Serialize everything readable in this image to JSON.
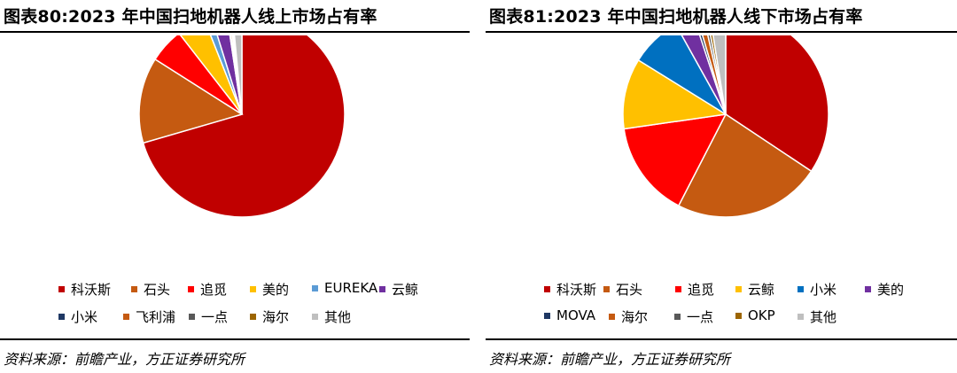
{
  "charts": [
    {
      "title": "图表80:2023 年中国扫地机器人线上市场占有率",
      "source": "资料来源：前瞻产业，方正证券研究所",
      "chart_data": {
        "type": "pie",
        "title": "图表80:2023 年中国扫地机器人线上市场占有率",
        "start_angle_deg": 0,
        "direction": "clockwise",
        "labels": [
          "科沃斯",
          "石头",
          "追觅",
          "美的",
          "EUREKA",
          "云鲸",
          "小米",
          "飞利浦",
          "一点",
          "海尔",
          "其他"
        ],
        "values": [
          70.5,
          13.5,
          5.5,
          4.5,
          1.2,
          2.4,
          0.2,
          0.3,
          0.2,
          0.2,
          1.5
        ],
        "colors": [
          "#C00000",
          "#C55A11",
          "#FF0000",
          "#FFC000",
          "#5B9BD5",
          "#7030A0",
          "#1F3864",
          "#C55A11",
          "#595959",
          "#9C6500",
          "#BFBFBF"
        ],
        "legend_position": "bottom"
      },
      "legend_rows": [
        [
          0,
          1,
          2,
          3,
          4,
          5
        ],
        [
          6,
          7,
          8,
          9,
          10
        ]
      ]
    },
    {
      "title": "图表81:2023 年中国扫地机器人线下市场占有率",
      "source": "资料来源：前瞻产业，方正证券研究所",
      "chart_data": {
        "type": "pie",
        "title": "图表81:2023 年中国扫地机器人线下市场占有率",
        "start_angle_deg": 0,
        "direction": "clockwise",
        "labels": [
          "科沃斯",
          "石头",
          "追觅",
          "云鲸",
          "小米",
          "美的",
          "MOVA",
          "海尔",
          "一点",
          "OKP",
          "其他"
        ],
        "values": [
          34.0,
          23.0,
          15.0,
          11.0,
          8.0,
          3.0,
          0.5,
          1.0,
          0.5,
          0.5,
          2.5
        ],
        "colors": [
          "#C00000",
          "#C55A11",
          "#FF0000",
          "#FFC000",
          "#0070C0",
          "#7030A0",
          "#1F3864",
          "#C55A11",
          "#595959",
          "#9C6500",
          "#BFBFBF"
        ],
        "legend_position": "bottom"
      },
      "legend_rows": [
        [
          0,
          1,
          2,
          3,
          4,
          5
        ],
        [
          6,
          7,
          8,
          9,
          10
        ]
      ]
    }
  ]
}
